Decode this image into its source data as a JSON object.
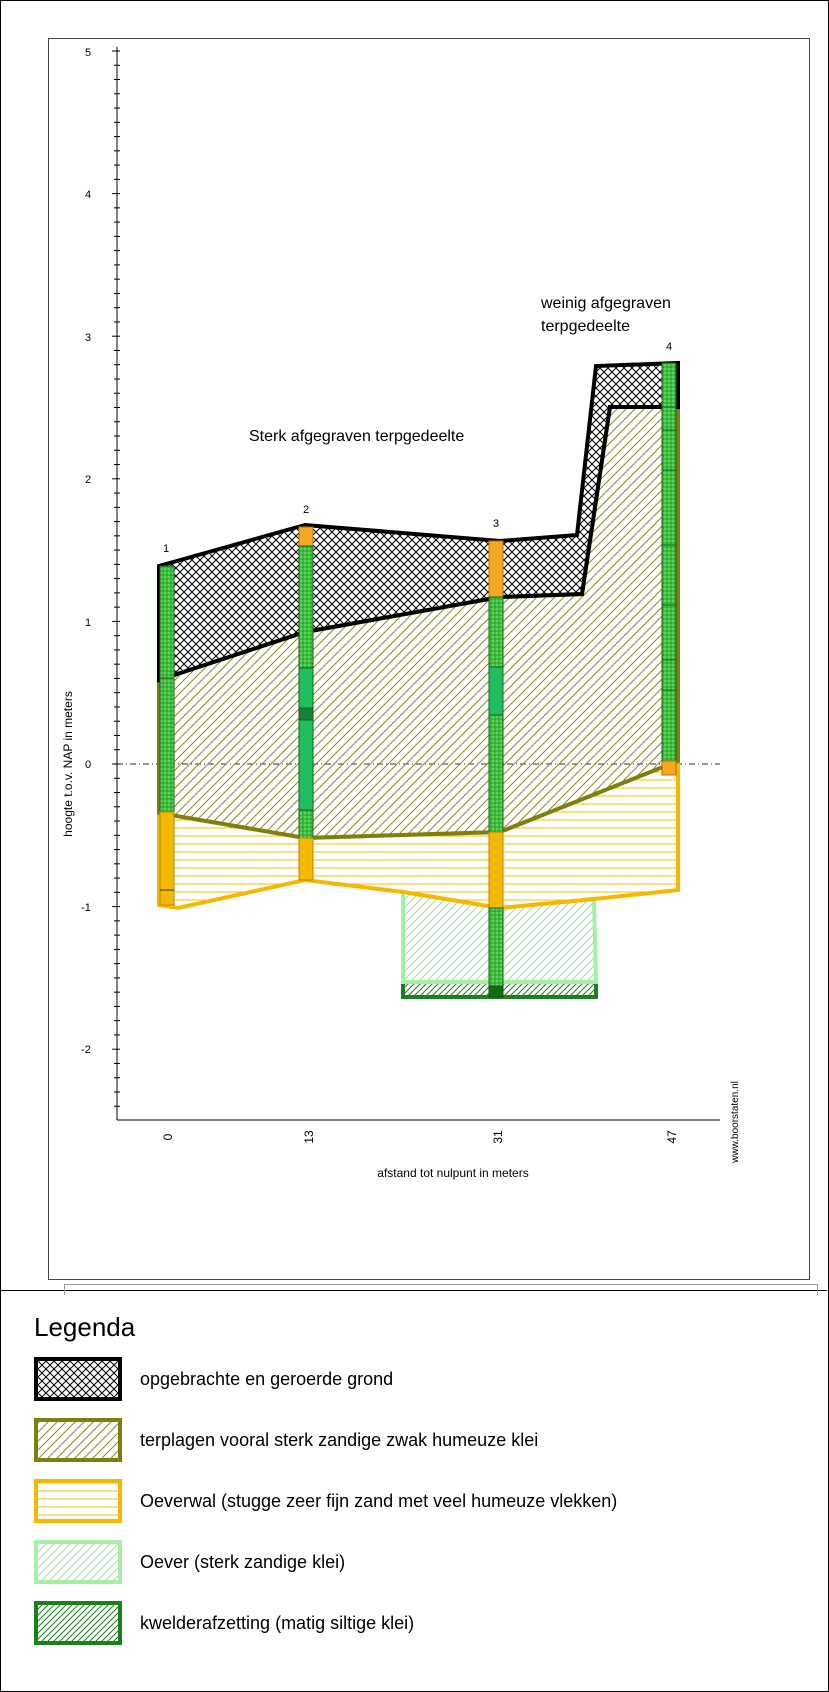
{
  "chart": {
    "ylabel": "hoogte t.o.v. NAP in meters",
    "xlabel": "afstand tot nulpunt in meters",
    "yticks": [
      "5",
      "4",
      "3",
      "2",
      "1",
      "0",
      "-1",
      "-2"
    ],
    "xticks": [
      "0",
      "13",
      "31",
      "47"
    ],
    "borings": [
      "1",
      "2",
      "3",
      "4"
    ],
    "annotation_left": "Sterk afgegraven terpgedeelte",
    "annotation_right_line1": "weinig afgegraven",
    "annotation_right_line2": "terpgedeelte",
    "watermark": "www.boorstaten.nl"
  },
  "legend": {
    "title": "Legenda",
    "items": [
      {
        "label": "opgebrachte en geroerde grond",
        "border": "#000000",
        "pattern": "crosshatch"
      },
      {
        "label": "terplagen vooral sterk zandige zwak humeuze klei",
        "border": "#7f7f10",
        "pattern": "diagonal-olive"
      },
      {
        "label": "Oeverwal (stugge zeer fijn zand met veel humeuze vlekken)",
        "border": "#f5b800",
        "pattern": "horizontal-yellow"
      },
      {
        "label": "Oever (sterk zandige klei)",
        "border": "#a6f0a6",
        "pattern": "diagonal-lightgreen"
      },
      {
        "label": "kwelderafzetting (matig siltige klei)",
        "border": "#1b7f1b",
        "pattern": "diagonal-darkgreen"
      }
    ]
  },
  "chart_data": {
    "type": "cross-section",
    "xlabel": "afstand tot nulpunt in meters",
    "ylabel": "hoogte t.o.v. NAP in meters",
    "ylim": [
      -2.5,
      5
    ],
    "boreholes": [
      {
        "name": "1",
        "x": 0,
        "top": 1.4
      },
      {
        "name": "2",
        "x": 13,
        "top": 1.67
      },
      {
        "name": "3",
        "x": 31,
        "top": 1.58
      },
      {
        "name": "4",
        "x": 47,
        "top": 2.8
      }
    ]
  }
}
